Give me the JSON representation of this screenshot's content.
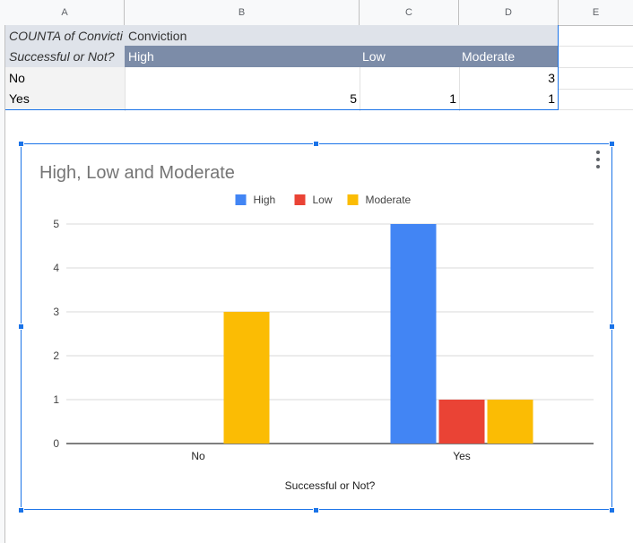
{
  "columns": [
    "A",
    "B",
    "C",
    "D",
    "E"
  ],
  "pivot": {
    "title_row": {
      "a": "COUNTA of Convicti",
      "b": "Conviction"
    },
    "header_row": {
      "a": "Successful or Not?",
      "b": "High",
      "c": "Low",
      "d": "Moderate"
    },
    "rows": [
      {
        "label": "No",
        "b": "",
        "c": "",
        "d": "3"
      },
      {
        "label": "Yes",
        "b": "5",
        "c": "1",
        "d": "1"
      }
    ]
  },
  "chart_data": {
    "type": "bar",
    "title": "High, Low and Moderate",
    "xlabel": "Successful or Not?",
    "ylabel": "",
    "categories": [
      "No",
      "Yes"
    ],
    "series": [
      {
        "name": "High",
        "color": "#4285f4",
        "values": [
          0,
          5
        ]
      },
      {
        "name": "Low",
        "color": "#ea4335",
        "values": [
          0,
          1
        ]
      },
      {
        "name": "Moderate",
        "color": "#fbbc04",
        "values": [
          3,
          1
        ]
      }
    ],
    "ylim": [
      0,
      5
    ],
    "yticks": [
      0,
      1,
      2,
      3,
      4,
      5
    ],
    "grid": true,
    "legend": "top"
  }
}
